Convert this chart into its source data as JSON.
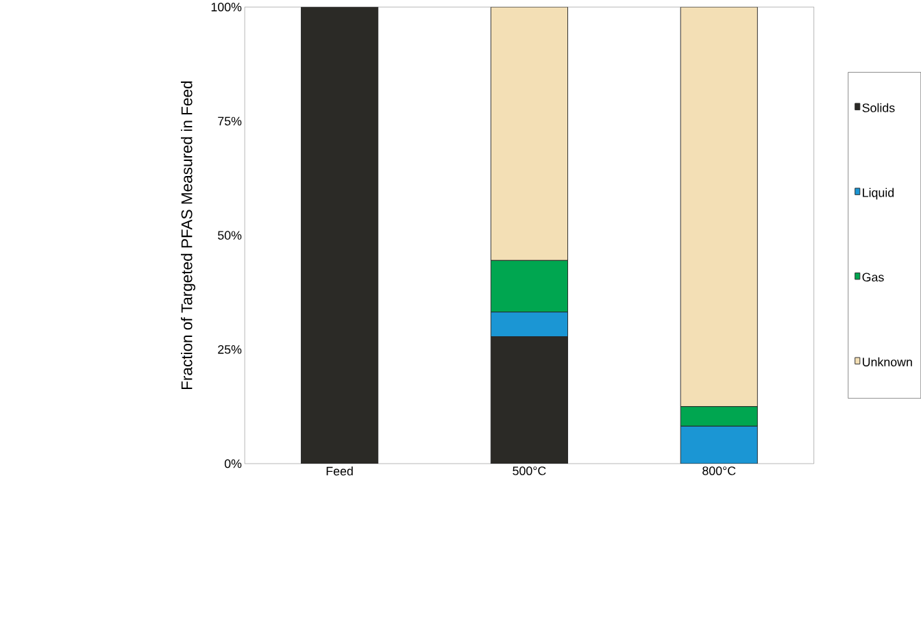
{
  "chart_data": {
    "type": "bar",
    "stacked": true,
    "ylabel": "Fraction of Targeted PFAS Measured in Feed",
    "categories": [
      "Feed",
      "500°C",
      "800°C"
    ],
    "series": [
      {
        "name": "Solids",
        "color": "#2b2a26",
        "values": [
          100,
          27.8,
          0
        ]
      },
      {
        "name": "Liquid",
        "color": "#1b96d4",
        "values": [
          0,
          5.4,
          8.2
        ]
      },
      {
        "name": "Gas",
        "color": "#00a650",
        "values": [
          0,
          11.3,
          4.3
        ]
      },
      {
        "name": "Unknown",
        "color": "#f3dfb5",
        "values": [
          0,
          55.5,
          87.5
        ]
      }
    ],
    "ylim": [
      0,
      100
    ],
    "yticks": [
      {
        "value": 0,
        "label": "0%"
      },
      {
        "value": 25,
        "label": "25%"
      },
      {
        "value": 50,
        "label": "50%"
      },
      {
        "value": 75,
        "label": "75%"
      },
      {
        "value": 100,
        "label": "100%"
      }
    ],
    "grid": false,
    "legend": "right"
  }
}
